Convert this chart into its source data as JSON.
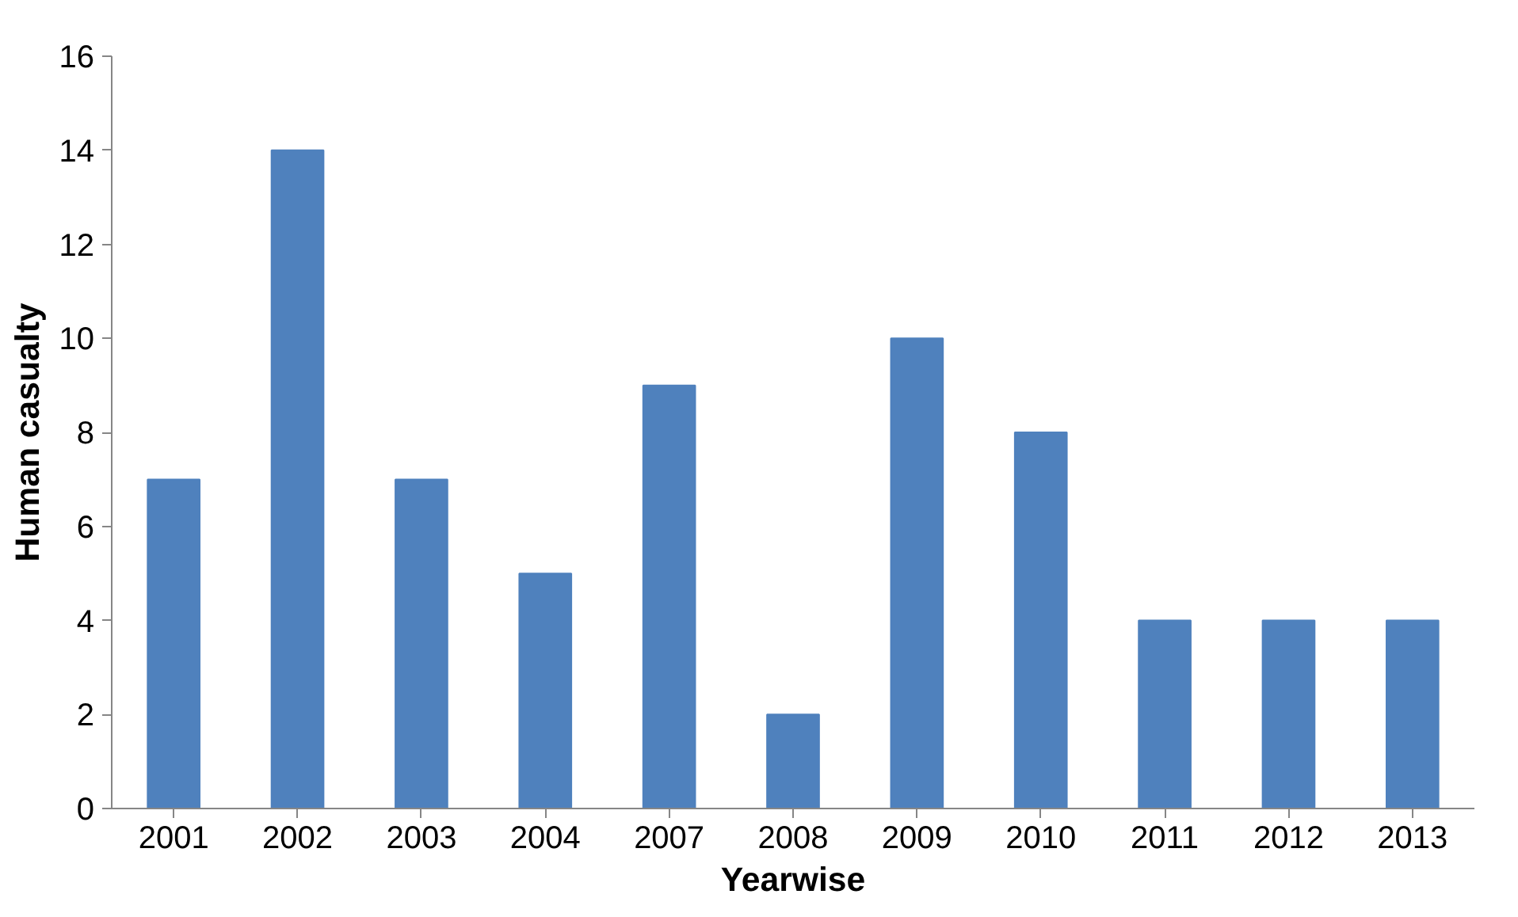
{
  "chart_data": {
    "type": "bar",
    "xlabel": "Yearwise",
    "ylabel": "Human casualty",
    "categories": [
      "2001",
      "2002",
      "2003",
      "2004",
      "2007",
      "2008",
      "2009",
      "2010",
      "2011",
      "2012",
      "2013"
    ],
    "values": [
      7,
      14,
      7,
      5,
      9,
      2,
      10,
      8,
      4,
      4,
      4
    ],
    "color": "#4f81bd",
    "ylim": [
      0,
      16
    ],
    "yticks": [
      0,
      2,
      4,
      6,
      8,
      10,
      12,
      14,
      16
    ],
    "grid": false
  }
}
